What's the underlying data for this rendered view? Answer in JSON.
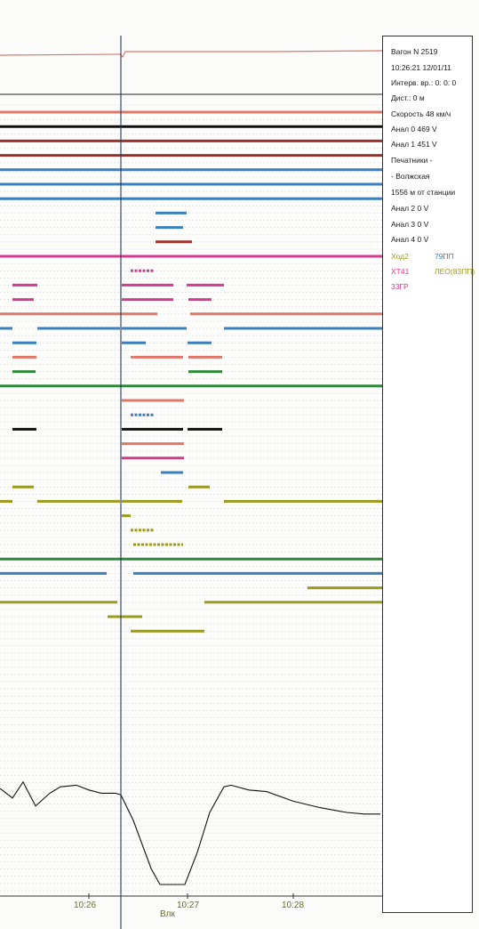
{
  "info_panel": {
    "lines": [
      "Вагон N 2519",
      "10:26:21 12/01/11",
      "Интерв. вр.:  0: 0: 0",
      "Дист.:  0 м",
      "Скорость  48 км/ч",
      "Анал 0 469 V",
      "Анал 1 451 V",
      "Печатники -",
      " - Волжская",
      "1556 м от станции",
      "Анал 2 0 V",
      "Анал 3 0 V",
      "Анал 4 0 V"
    ],
    "legend": [
      {
        "label": "Ход2",
        "color": "#9a9a1e"
      },
      {
        "label": "79ПП",
        "color": "#3a7fc0"
      },
      {
        "label": "ХТ41",
        "color": "#d43a8e"
      },
      {
        "label": "ЛЕО(83ПП)",
        "color": "#9a9a1e"
      },
      {
        "label": "33ГР",
        "color": "#d43a8e"
      }
    ]
  },
  "chart_data": {
    "type": "timeline",
    "x_ticks": [
      "10:26",
      "10:27",
      "10:28"
    ],
    "station_label": "Влк",
    "cursor_time": "10:26:21",
    "colors": {
      "salmon": "#e0786a",
      "black": "#111111",
      "maroon": "#a0302c",
      "blue": "#3a7fc0",
      "magenta": "#d43a8e",
      "green": "#2e8a3a",
      "olive": "#9a9a1e",
      "grid": "#d8d8d8",
      "cursor": "#2a3a5a",
      "speed": "#111111"
    },
    "channels": [
      {
        "color": "salmon",
        "segments": [
          [
            0,
            430
          ]
        ]
      },
      {
        "color": "black",
        "segments": [
          [
            0,
            430
          ]
        ]
      },
      {
        "color": "maroon",
        "segments": [
          [
            0,
            430
          ]
        ]
      },
      {
        "color": "maroon",
        "segments": [
          [
            0,
            430
          ]
        ]
      },
      {
        "color": "blue",
        "segments": [
          [
            0,
            430
          ]
        ]
      },
      {
        "color": "blue",
        "segments": [
          [
            0,
            430
          ]
        ]
      },
      {
        "color": "blue",
        "segments": [
          [
            0,
            430
          ]
        ]
      },
      {
        "color": "blue",
        "segments": [
          [
            175,
            210
          ]
        ]
      },
      {
        "color": "blue",
        "segments": [
          [
            175,
            206
          ]
        ]
      },
      {
        "color": "maroon",
        "segments": [
          [
            175,
            216
          ]
        ]
      },
      {
        "color": "magenta",
        "segments": [
          [
            0,
            430
          ]
        ]
      },
      {
        "color": "magenta",
        "segments": [
          [
            147,
            173
          ]
        ],
        "dashed": true
      },
      {
        "color": "magenta",
        "segments": [
          [
            14,
            42
          ],
          [
            137,
            195
          ],
          [
            210,
            252
          ]
        ]
      },
      {
        "color": "magenta",
        "segments": [
          [
            14,
            38
          ],
          [
            137,
            195
          ],
          [
            212,
            238
          ]
        ]
      },
      {
        "color": "salmon",
        "segments": [
          [
            0,
            177
          ],
          [
            214,
            430
          ]
        ]
      },
      {
        "color": "blue",
        "segments": [
          [
            0,
            14
          ],
          [
            42,
            135
          ],
          [
            137,
            210
          ],
          [
            252,
            430
          ]
        ]
      },
      {
        "color": "blue",
        "segments": [
          [
            14,
            41
          ],
          [
            137,
            164
          ],
          [
            211,
            238
          ]
        ]
      },
      {
        "color": "salmon",
        "segments": [
          [
            14,
            41
          ],
          [
            147,
            206
          ],
          [
            212,
            250
          ]
        ]
      },
      {
        "color": "green",
        "segments": [
          [
            14,
            40
          ],
          [
            212,
            250
          ]
        ]
      },
      {
        "color": "green",
        "segments": [
          [
            0,
            430
          ]
        ]
      },
      {
        "color": "salmon",
        "segments": [
          [
            137,
            207
          ]
        ]
      },
      {
        "color": "blue",
        "segments": [
          [
            147,
            173
          ]
        ],
        "dashed": true
      },
      {
        "color": "black",
        "segments": [
          [
            14,
            41
          ],
          [
            137,
            206
          ],
          [
            211,
            250
          ]
        ]
      },
      {
        "color": "salmon",
        "segments": [
          [
            137,
            207
          ]
        ]
      },
      {
        "color": "magenta",
        "segments": [
          [
            137,
            207
          ]
        ]
      },
      {
        "color": "blue",
        "segments": [
          [
            181,
            206
          ]
        ]
      },
      {
        "color": "olive",
        "segments": [
          [
            14,
            38
          ],
          [
            212,
            236
          ]
        ]
      },
      {
        "color": "olive",
        "segments": [
          [
            0,
            14
          ],
          [
            42,
            135
          ],
          [
            137,
            205
          ],
          [
            252,
            430
          ]
        ]
      },
      {
        "color": "olive",
        "segments": [
          [
            137,
            147
          ]
        ]
      },
      {
        "color": "olive",
        "segments": [
          [
            147,
            173
          ]
        ],
        "dashed": true
      },
      {
        "color": "olive",
        "segments": [
          [
            150,
            206
          ]
        ],
        "dashed": true
      },
      {
        "color": "green",
        "segments": [
          [
            0,
            430
          ]
        ]
      },
      {
        "color": "blue",
        "segments": [
          [
            0,
            120
          ],
          [
            150,
            430
          ]
        ]
      },
      {
        "color": "olive",
        "segments": [
          [
            346,
            430
          ]
        ]
      },
      {
        "color": "olive",
        "segments": [
          [
            0,
            132
          ],
          [
            230,
            430
          ]
        ]
      },
      {
        "color": "olive",
        "segments": [
          [
            121,
            160
          ]
        ]
      },
      {
        "color": "olive",
        "segments": [
          [
            147,
            230
          ]
        ]
      }
    ],
    "speed_trace_units": "km/h",
    "speed_trace": [
      [
        0,
        60
      ],
      [
        14,
        48
      ],
      [
        26,
        68
      ],
      [
        40,
        38
      ],
      [
        56,
        54
      ],
      [
        68,
        62
      ],
      [
        86,
        64
      ],
      [
        100,
        58
      ],
      [
        114,
        54
      ],
      [
        130,
        54
      ],
      [
        136,
        52
      ],
      [
        150,
        20
      ],
      [
        170,
        -40
      ],
      [
        180,
        -60
      ],
      [
        208,
        -60
      ],
      [
        222,
        -20
      ],
      [
        236,
        30
      ],
      [
        252,
        62
      ],
      [
        260,
        64
      ],
      [
        280,
        58
      ],
      [
        300,
        56
      ],
      [
        330,
        44
      ],
      [
        360,
        36
      ],
      [
        390,
        30
      ],
      [
        410,
        28
      ],
      [
        428,
        28
      ]
    ]
  }
}
